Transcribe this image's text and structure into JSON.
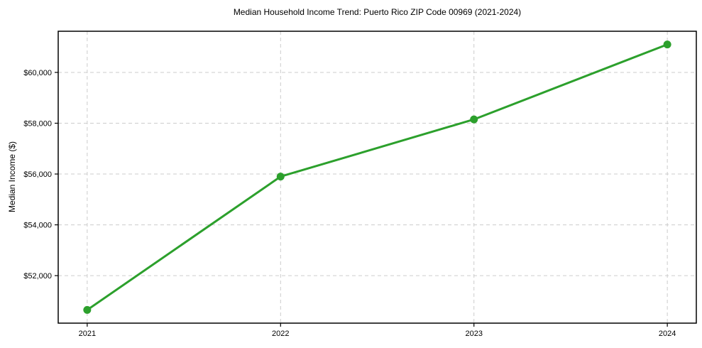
{
  "chart_data": {
    "type": "line",
    "title": "Median Household Income Trend: Puerto Rico ZIP Code 00969 (2021-2024)",
    "xlabel": "",
    "ylabel": "Median Income ($)",
    "x": [
      2021,
      2022,
      2023,
      2024
    ],
    "series": [
      {
        "name": "Median Household Income",
        "values": [
          50650,
          55900,
          58150,
          61100
        ],
        "color": "#2ca02c",
        "marker": "circle"
      }
    ],
    "xtick_labels": [
      "2021",
      "2022",
      "2023",
      "2024"
    ],
    "ytick_values": [
      52000,
      54000,
      56000,
      58000,
      60000
    ],
    "ytick_labels": [
      "$52,000",
      "$54,000",
      "$56,000",
      "$58,000",
      "$60,000"
    ],
    "xlim": [
      2020.85,
      2024.15
    ],
    "ylim": [
      50130,
      61620
    ],
    "grid": true,
    "grid_style": "dashed",
    "grid_color": "#cccccc",
    "spine_color": "#000000",
    "background": "#ffffff",
    "legend": "none"
  }
}
